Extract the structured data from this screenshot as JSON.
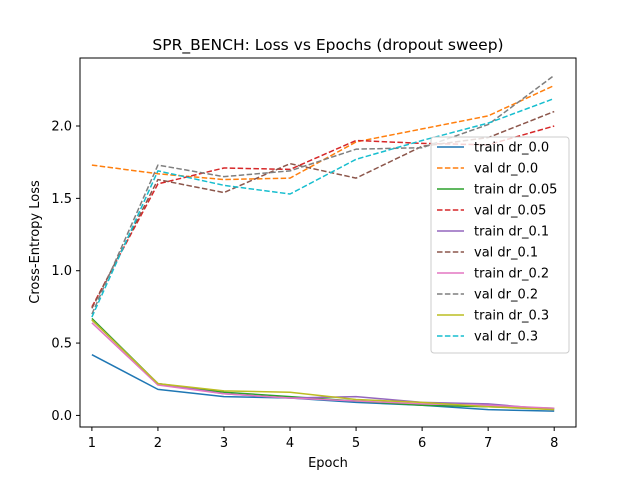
{
  "chart_data": {
    "type": "line",
    "title": "SPR_BENCH: Loss vs Epochs (dropout sweep)",
    "xlabel": "Epoch",
    "ylabel": "Cross-Entropy Loss",
    "x": [
      1,
      2,
      3,
      4,
      5,
      6,
      7,
      8
    ],
    "xlim": [
      0.82,
      8.33
    ],
    "ylim": [
      -0.08,
      2.47
    ],
    "xticks": [
      1,
      2,
      3,
      4,
      5,
      6,
      7,
      8
    ],
    "yticks": [
      0.0,
      0.5,
      1.0,
      1.5,
      2.0
    ],
    "ytick_labels": [
      "0.0",
      "0.5",
      "1.0",
      "1.5",
      "2.0"
    ],
    "grid": false,
    "legend_position": "center-right",
    "series": [
      {
        "name": "train dr_0.0",
        "style": "solid",
        "color": "#1f77b4",
        "values": [
          0.42,
          0.18,
          0.13,
          0.12,
          0.09,
          0.07,
          0.04,
          0.03
        ]
      },
      {
        "name": "val dr_0.0",
        "style": "dashed",
        "color": "#ff7f0e",
        "values": [
          1.73,
          1.67,
          1.63,
          1.64,
          1.89,
          1.98,
          2.07,
          2.28
        ]
      },
      {
        "name": "train dr_0.05",
        "style": "solid",
        "color": "#2ca02c",
        "values": [
          0.67,
          0.22,
          0.16,
          0.13,
          0.1,
          0.07,
          0.06,
          0.05
        ]
      },
      {
        "name": "val dr_0.05",
        "style": "dashed",
        "color": "#d62728",
        "values": [
          0.75,
          1.6,
          1.71,
          1.7,
          1.9,
          1.88,
          1.87,
          2.0
        ]
      },
      {
        "name": "train dr_0.1",
        "style": "solid",
        "color": "#9467bd",
        "values": [
          0.66,
          0.22,
          0.15,
          0.12,
          0.13,
          0.09,
          0.08,
          0.04
        ]
      },
      {
        "name": "val dr_0.1",
        "style": "dashed",
        "color": "#8c564b",
        "values": [
          0.74,
          1.63,
          1.54,
          1.74,
          1.64,
          1.86,
          1.92,
          2.1
        ]
      },
      {
        "name": "train dr_0.2",
        "style": "solid",
        "color": "#e377c2",
        "values": [
          0.64,
          0.21,
          0.15,
          0.12,
          0.1,
          0.08,
          0.07,
          0.05
        ]
      },
      {
        "name": "val dr_0.2",
        "style": "dashed",
        "color": "#7f7f7f",
        "values": [
          0.7,
          1.73,
          1.65,
          1.69,
          1.84,
          1.85,
          2.01,
          2.35
        ]
      },
      {
        "name": "train dr_0.3",
        "style": "solid",
        "color": "#bcbd22",
        "values": [
          0.66,
          0.22,
          0.17,
          0.16,
          0.11,
          0.09,
          0.06,
          0.04
        ]
      },
      {
        "name": "val dr_0.3",
        "style": "dashed",
        "color": "#17becf",
        "values": [
          0.68,
          1.69,
          1.59,
          1.53,
          1.77,
          1.9,
          2.02,
          2.19
        ]
      }
    ]
  }
}
